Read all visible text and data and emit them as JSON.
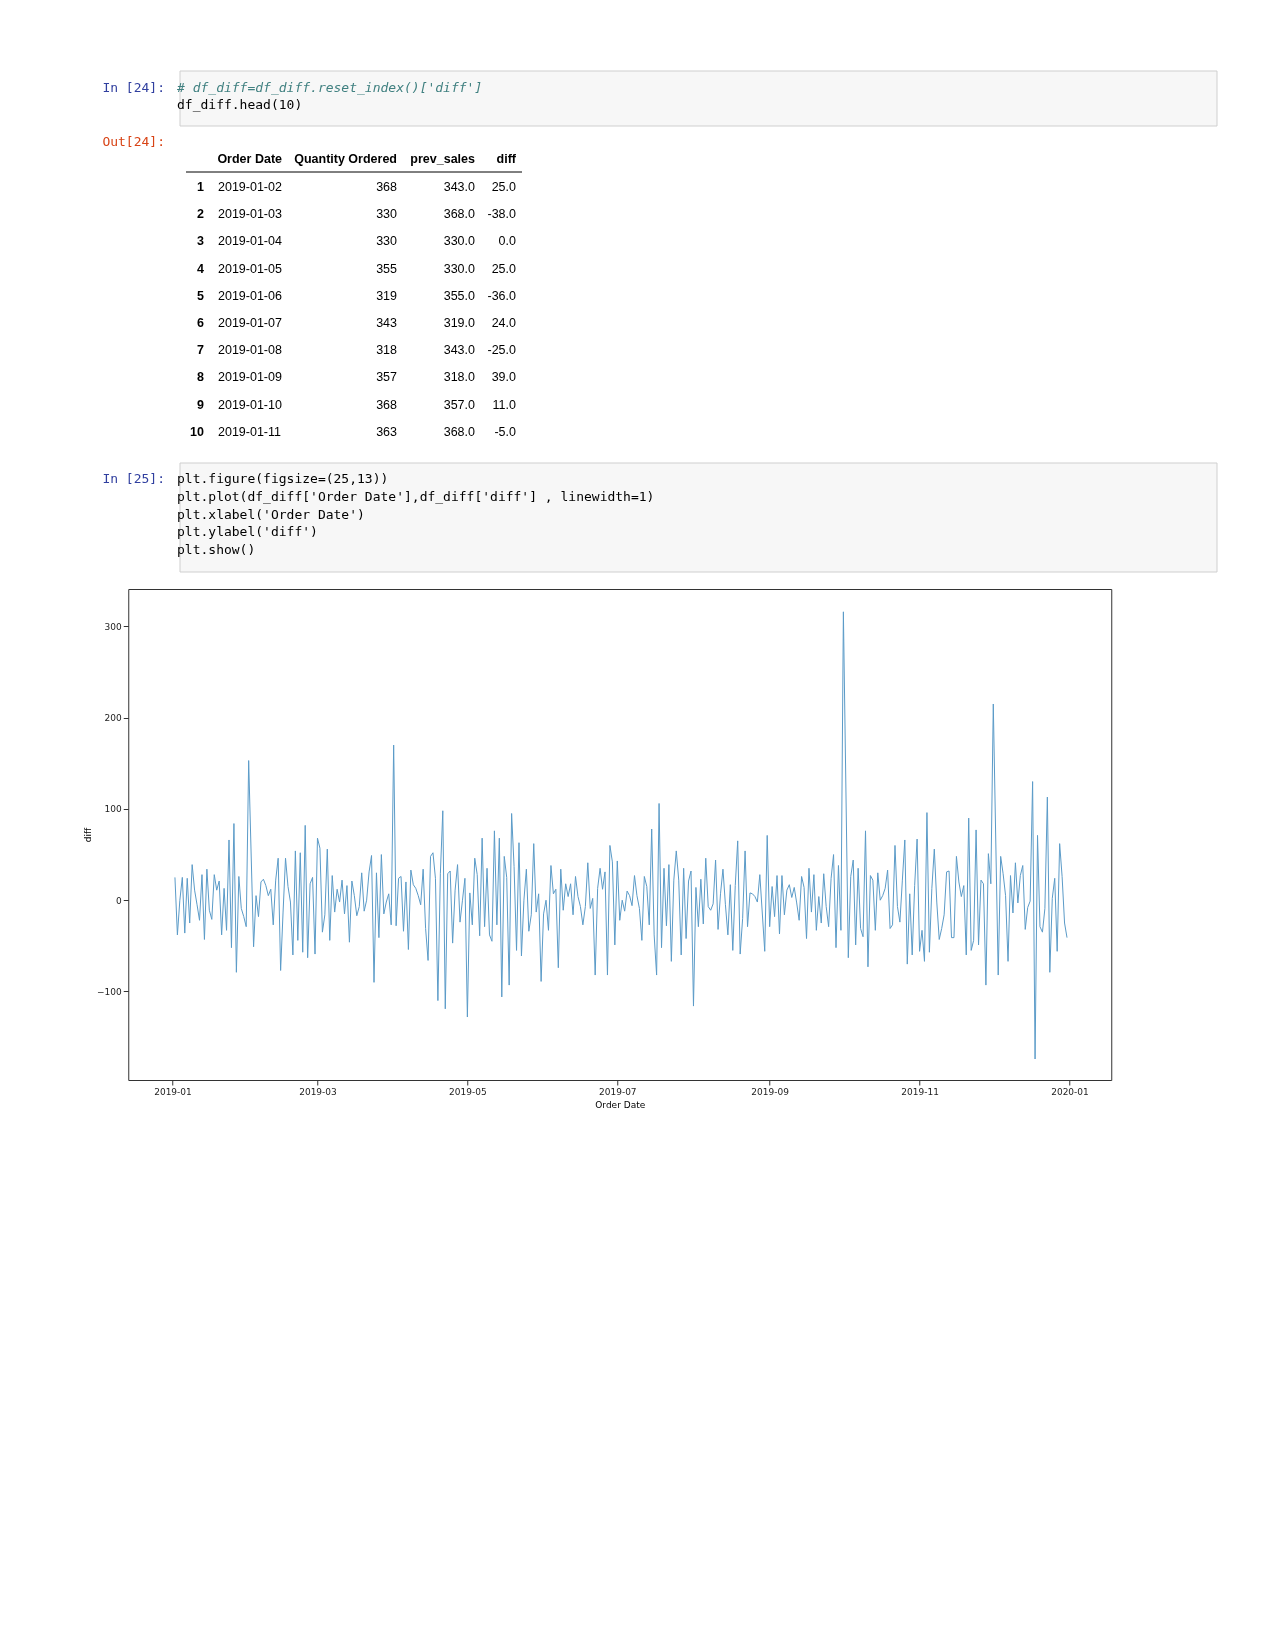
{
  "chart_data": {
    "type": "line",
    "xlabel": "Order Date",
    "ylabel": "diff",
    "annotations": [
      "In [24]:",
      "# df_diff=df_diff.reset_index()['diff']",
      "df_diff.head(10)",
      "Out[24]:",
      "Order Date",
      "Quantity Ordered",
      "prev_sales",
      "diff",
      "1",
      "2019-01-02",
      "368",
      "343.0",
      "25.0",
      "2",
      "2019-01-03",
      "330",
      "368.0",
      "-38.0",
      "3",
      "2019-01-04",
      "330",
      "330.0",
      "0.0",
      "4",
      "2019-01-05",
      "355",
      "330.0",
      "25.0",
      "5",
      "2019-01-06",
      "319",
      "355.0",
      "-36.0",
      "6",
      "2019-01-07",
      "343",
      "319.0",
      "24.0",
      "7",
      "2019-01-08",
      "318",
      "343.0",
      "-25.0",
      "8",
      "2019-01-09",
      "357",
      "318.0",
      "39.0",
      "9",
      "2019-01-10",
      "368",
      "357.0",
      "11.0",
      "10",
      "2019-01-11",
      "363",
      "368.0",
      "-5.0",
      "In [25]:",
      "plt.figure(figsize=(25,13))",
      "plt.plot(df_diff['Order Date'],df_diff['diff'] , linewidth=1)",
      "plt.xlabel('Order Date')",
      "plt.ylabel('diff')",
      "plt.show()"
    ],
    "x": [
      "2019-01-02",
      "2019-01-03",
      "2019-01-04",
      "2019-01-05",
      "2019-01-06",
      "2019-01-07",
      "2019-01-08",
      "2019-01-09",
      "2019-01-10",
      "2019-01-11",
      "2019-01-12",
      "2019-01-13",
      "2019-01-14",
      "2019-01-15",
      "2019-01-16",
      "2019-01-17",
      "2019-01-18",
      "2019-01-19",
      "2019-01-20",
      "2019-01-21",
      "2019-01-22",
      "2019-01-23",
      "2019-01-24",
      "2019-01-25",
      "2019-01-26",
      "2019-01-27",
      "2019-01-28",
      "2019-01-29",
      "2019-01-30",
      "2019-01-31",
      "2019-02-01",
      "2019-02-03",
      "2019-02-04",
      "2019-02-05",
      "2019-02-06",
      "2019-02-07",
      "2019-02-08",
      "2019-02-09",
      "2019-02-10",
      "2019-02-11",
      "2019-02-12",
      "2019-02-13",
      "2019-02-14",
      "2019-02-15",
      "2019-02-16",
      "2019-02-17",
      "2019-02-18",
      "2019-02-19",
      "2019-02-20",
      "2019-02-21",
      "2019-02-22",
      "2019-02-23",
      "2019-02-24",
      "2019-02-25",
      "2019-02-26",
      "2019-02-27",
      "2019-02-28",
      "2019-03-01",
      "2019-03-02",
      "2019-03-03",
      "2019-03-04",
      "2019-03-05",
      "2019-03-06",
      "2019-03-07",
      "2019-03-08",
      "2019-03-09",
      "2019-03-10",
      "2019-03-11",
      "2019-03-12",
      "2019-03-13",
      "2019-03-14",
      "2019-03-15",
      "2019-03-16",
      "2019-03-17",
      "2019-03-18",
      "2019-03-19",
      "2019-03-20",
      "2019-03-21",
      "2019-03-22",
      "2019-03-23",
      "2019-03-24",
      "2019-03-25",
      "2019-03-26",
      "2019-03-27",
      "2019-03-28",
      "2019-03-29",
      "2019-03-30",
      "2019-03-31",
      "2019-04-01",
      "2019-04-02",
      "2019-04-03",
      "2019-04-04",
      "2019-04-05",
      "2019-04-06",
      "2019-04-07",
      "2019-04-08",
      "2019-04-09",
      "2019-04-10",
      "2019-04-11",
      "2019-04-12",
      "2019-04-13",
      "2019-04-14",
      "2019-04-15",
      "2019-04-16",
      "2019-04-17",
      "2019-04-18",
      "2019-04-19",
      "2019-04-20",
      "2019-04-21",
      "2019-04-22",
      "2019-04-23",
      "2019-04-24",
      "2019-04-25",
      "2019-04-26",
      "2019-04-27",
      "2019-04-28",
      "2019-04-29",
      "2019-04-30",
      "2019-05-01",
      "2019-05-02",
      "2019-05-03",
      "2019-05-04",
      "2019-05-05",
      "2019-05-06",
      "2019-05-07",
      "2019-05-08",
      "2019-05-09",
      "2019-05-10",
      "2019-05-11",
      "2019-05-12",
      "2019-05-13",
      "2019-05-14",
      "2019-05-15",
      "2019-05-16",
      "2019-05-17",
      "2019-05-18",
      "2019-05-19",
      "2019-05-20",
      "2019-05-21",
      "2019-05-22",
      "2019-05-23",
      "2019-05-24",
      "2019-05-25",
      "2019-05-26",
      "2019-05-27",
      "2019-05-28",
      "2019-05-29",
      "2019-05-30",
      "2019-05-31",
      "2019-06-01",
      "2019-06-02",
      "2019-06-03",
      "2019-06-04",
      "2019-06-05",
      "2019-06-06",
      "2019-06-07",
      "2019-06-08",
      "2019-06-09",
      "2019-06-10",
      "2019-06-11",
      "2019-06-12",
      "2019-06-13",
      "2019-06-14",
      "2019-06-15",
      "2019-06-16",
      "2019-06-17",
      "2019-06-18",
      "2019-06-19",
      "2019-06-20",
      "2019-06-21",
      "2019-06-22",
      "2019-06-23",
      "2019-06-24",
      "2019-06-25",
      "2019-06-26",
      "2019-06-27",
      "2019-06-28",
      "2019-06-29",
      "2019-06-30",
      "2019-07-01",
      "2019-07-02",
      "2019-07-03",
      "2019-07-04",
      "2019-07-05",
      "2019-07-06",
      "2019-07-07",
      "2019-07-08",
      "2019-07-09",
      "2019-07-10",
      "2019-07-11",
      "2019-07-12",
      "2019-07-13",
      "2019-07-14",
      "2019-07-15",
      "2019-07-16",
      "2019-07-17",
      "2019-07-18",
      "2019-07-19",
      "2019-07-20",
      "2019-07-21",
      "2019-07-22",
      "2019-07-23",
      "2019-07-24",
      "2019-07-25",
      "2019-07-26",
      "2019-07-27",
      "2019-07-28",
      "2019-07-29",
      "2019-07-30",
      "2019-07-31",
      "2019-08-01",
      "2019-08-02",
      "2019-08-03",
      "2019-08-04",
      "2019-08-05",
      "2019-08-06",
      "2019-08-07",
      "2019-08-08",
      "2019-08-09",
      "2019-08-10",
      "2019-08-11",
      "2019-08-12",
      "2019-08-13",
      "2019-08-14",
      "2019-08-15",
      "2019-08-16",
      "2019-08-17",
      "2019-08-18",
      "2019-08-19",
      "2019-08-20",
      "2019-08-21",
      "2019-08-22",
      "2019-08-23",
      "2019-08-24",
      "2019-08-25",
      "2019-08-26",
      "2019-08-27",
      "2019-08-28",
      "2019-08-30",
      "2019-08-31",
      "2019-09-01",
      "2019-09-02",
      "2019-09-03",
      "2019-09-04",
      "2019-09-05",
      "2019-09-06",
      "2019-09-07",
      "2019-09-08",
      "2019-09-09",
      "2019-09-10",
      "2019-09-11",
      "2019-09-12",
      "2019-09-13",
      "2019-09-14",
      "2019-09-15",
      "2019-09-16",
      "2019-09-17",
      "2019-09-18",
      "2019-09-19",
      "2019-09-20",
      "2019-09-21",
      "2019-09-22",
      "2019-09-23",
      "2019-09-24",
      "2019-09-25",
      "2019-09-26",
      "2019-09-27",
      "2019-09-28",
      "2019-09-29",
      "2019-09-30",
      "2019-10-01",
      "2019-10-03",
      "2019-10-04",
      "2019-10-05",
      "2019-10-06",
      "2019-10-07",
      "2019-10-08",
      "2019-10-09",
      "2019-10-10",
      "2019-10-11",
      "2019-10-12",
      "2019-10-13",
      "2019-10-14",
      "2019-10-15",
      "2019-10-16",
      "2019-10-17",
      "2019-10-18",
      "2019-10-19",
      "2019-10-20",
      "2019-10-21",
      "2019-10-22",
      "2019-10-23",
      "2019-10-24",
      "2019-10-25",
      "2019-10-26",
      "2019-10-27",
      "2019-10-28",
      "2019-10-29",
      "2019-10-30",
      "2019-10-31",
      "2019-11-01",
      "2019-11-02",
      "2019-11-03",
      "2019-11-04",
      "2019-11-05",
      "2019-11-06",
      "2019-11-07",
      "2019-11-08",
      "2019-11-09",
      "2019-11-10",
      "2019-11-11",
      "2019-11-12",
      "2019-11-13",
      "2019-11-14",
      "2019-11-15",
      "2019-11-16",
      "2019-11-17",
      "2019-11-18",
      "2019-11-19",
      "2019-11-20",
      "2019-11-21",
      "2019-11-22",
      "2019-11-23",
      "2019-11-24",
      "2019-11-25",
      "2019-11-26",
      "2019-11-27",
      "2019-11-28",
      "2019-11-29",
      "2019-11-30",
      "2019-12-01",
      "2019-12-03",
      "2019-12-04",
      "2019-12-05",
      "2019-12-06",
      "2019-12-07",
      "2019-12-08",
      "2019-12-09",
      "2019-12-10",
      "2019-12-11",
      "2019-12-12",
      "2019-12-13",
      "2019-12-14",
      "2019-12-15",
      "2019-12-16",
      "2019-12-17",
      "2019-12-18",
      "2019-12-19",
      "2019-12-20",
      "2019-12-21",
      "2019-12-22",
      "2019-12-23",
      "2019-12-24",
      "2019-12-25",
      "2019-12-26",
      "2019-12-27",
      "2019-12-28",
      "2019-12-29",
      "2019-12-30",
      "2019-12-31"
    ],
    "series": [
      {
        "color": "#5b9bc8",
        "values": [
          25,
          -38,
          0,
          25,
          -36,
          24,
          -25,
          39,
          11,
          -5,
          -22,
          28,
          -43,
          34,
          -11,
          -21,
          28,
          11,
          21,
          -38,
          13,
          -33,
          66,
          -52,
          84,
          -79,
          26,
          -9,
          -18,
          -29,
          153,
          -51,
          5,
          -18,
          20,
          23,
          16,
          5,
          12,
          -27,
          22,
          46,
          -77,
          -13,
          46,
          15,
          -2,
          -60,
          54,
          -44,
          52,
          -57,
          82,
          -63,
          18,
          25,
          -59,
          68,
          57,
          -35,
          -16,
          56,
          -44,
          27,
          -13,
          12,
          -2,
          22,
          -15,
          16,
          -46,
          21,
          5,
          -17,
          -7,
          30,
          -12,
          0,
          31,
          49,
          -90,
          30,
          -41,
          50,
          -15,
          -2,
          7,
          -27,
          170,
          -28,
          24,
          26,
          -34,
          20,
          -54,
          33,
          17,
          13,
          5,
          -5,
          34,
          -31,
          -66,
          48,
          52,
          24,
          -110,
          29,
          98,
          -119,
          29,
          32,
          -47,
          11,
          39,
          -24,
          0,
          24,
          -128,
          8,
          -27,
          46,
          28,
          -39,
          68,
          -29,
          35,
          -38,
          -45,
          76,
          -27,
          68,
          -106,
          48,
          25,
          -93,
          95,
          37,
          -55,
          63,
          -61,
          0,
          34,
          -34,
          -16,
          62,
          -13,
          7,
          -89,
          -15,
          0,
          -33,
          38,
          7,
          12,
          -74,
          34,
          -11,
          18,
          4,
          18,
          -16,
          26,
          4,
          -7,
          -27,
          -7,
          41,
          -9,
          2,
          -82,
          13,
          35,
          12,
          31,
          -82,
          60,
          42,
          -49,
          43,
          -22,
          0,
          -12,
          10,
          5,
          -6,
          27,
          5,
          -9,
          -44,
          26,
          15,
          -27,
          78,
          -38,
          -82,
          106,
          -52,
          35,
          -28,
          39,
          -67,
          22,
          54,
          22,
          -60,
          35,
          -42,
          21,
          32,
          -116,
          14,
          -29,
          23,
          -26,
          46,
          -7,
          -11,
          -4,
          44,
          -32,
          7,
          34,
          -5,
          -38,
          17,
          -55,
          16,
          65,
          -59,
          -20,
          54,
          -29,
          8,
          7,
          4,
          -2,
          28,
          -56,
          71,
          -29,
          15,
          -18,
          27,
          -37,
          27,
          -16,
          11,
          17,
          3,
          14,
          -3,
          -22,
          26,
          14,
          -42,
          35,
          -13,
          28,
          -33,
          4,
          -25,
          29,
          -7,
          -29,
          24,
          50,
          -52,
          38,
          -33,
          316,
          -63,
          26,
          44,
          -49,
          35,
          -31,
          -40,
          76,
          -73,
          27,
          22,
          -33,
          30,
          0,
          5,
          13,
          33,
          -31,
          -27,
          60,
          -7,
          -24,
          22,
          66,
          -70,
          7,
          -60,
          16,
          67,
          -56,
          -33,
          -67,
          96,
          -57,
          13,
          56,
          -2,
          -43,
          -31,
          -16,
          31,
          32,
          -41,
          -41,
          48,
          20,
          4,
          16,
          -60,
          90,
          -55,
          -44,
          77,
          -49,
          22,
          18,
          -93,
          51,
          18,
          215,
          -82,
          48,
          29,
          5,
          -67,
          27,
          -14,
          41,
          -3,
          27,
          38,
          -32,
          -8,
          -1,
          130,
          -174,
          71,
          -29,
          -35,
          -9,
          113,
          -79,
          2,
          24,
          -56,
          62,
          26,
          -25,
          -41
        ]
      }
    ],
    "xlim": [
      "2018-12-14",
      "2020-01-18"
    ],
    "xticks": [
      "2019-01",
      "2019-03",
      "2019-05",
      "2019-07",
      "2019-09",
      "2019-11",
      "2020-01"
    ],
    "ylim": [
      -197,
      341
    ],
    "yticks": [
      {
        "value": -100,
        "label": "−100"
      },
      0,
      100,
      200,
      300
    ],
    "grid": false,
    "marker": "none",
    "line_style": "solid"
  }
}
